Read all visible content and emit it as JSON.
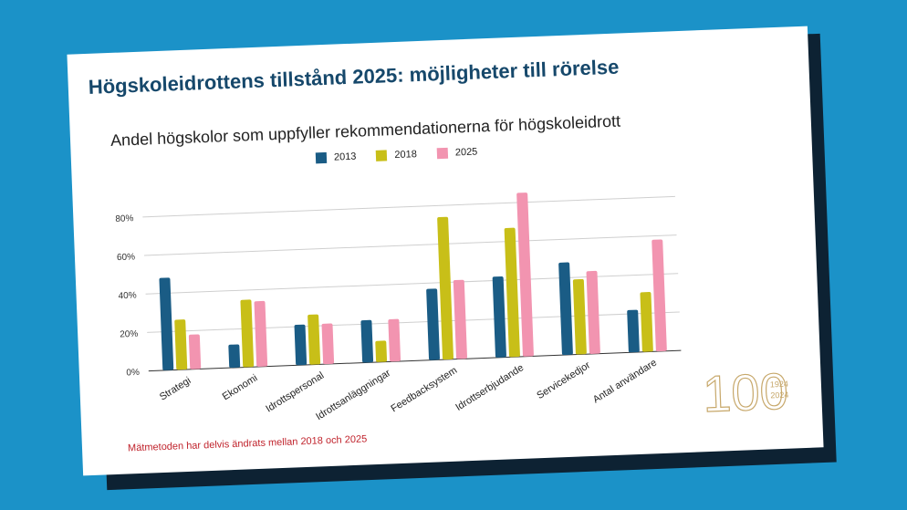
{
  "slide": {
    "title": "Högskoleidrottens tillstånd 2025: möjligheter till rörelse",
    "note": "Mätmetoden har delvis ändrats mellan 2018 och 2025"
  },
  "logo": {
    "number": "100",
    "years_top": "1924",
    "years_bottom": "2024",
    "color": "#c7a86b"
  },
  "chart_data": {
    "type": "bar",
    "title": "Andel högskolor som uppfyller rekommendationerna för högskoleidrott",
    "categories": [
      "Strategi",
      "Ekonomi",
      "Idrottspersonal",
      "Idrottsanläggningar",
      "Feedbacksystem",
      "Idrottserbjudande",
      "Servicekedjor",
      "Antal användare"
    ],
    "series": [
      {
        "name": "2013",
        "color": "#1a5c85",
        "values": [
          48,
          12,
          21,
          22,
          37,
          42,
          48,
          22
        ]
      },
      {
        "name": "2018",
        "color": "#c8bf18",
        "values": [
          26,
          35,
          26,
          11,
          74,
          67,
          39,
          31
        ]
      },
      {
        "name": "2025",
        "color": "#f294b0",
        "values": [
          18,
          34,
          21,
          22,
          41,
          85,
          43,
          58
        ]
      }
    ],
    "ylim": [
      0,
      90
    ],
    "yticks": [
      0,
      20,
      40,
      60,
      80
    ],
    "ytick_labels": [
      "0%",
      "20%",
      "40%",
      "60%",
      "80%"
    ],
    "legend_position": "top-center",
    "grid": true
  }
}
